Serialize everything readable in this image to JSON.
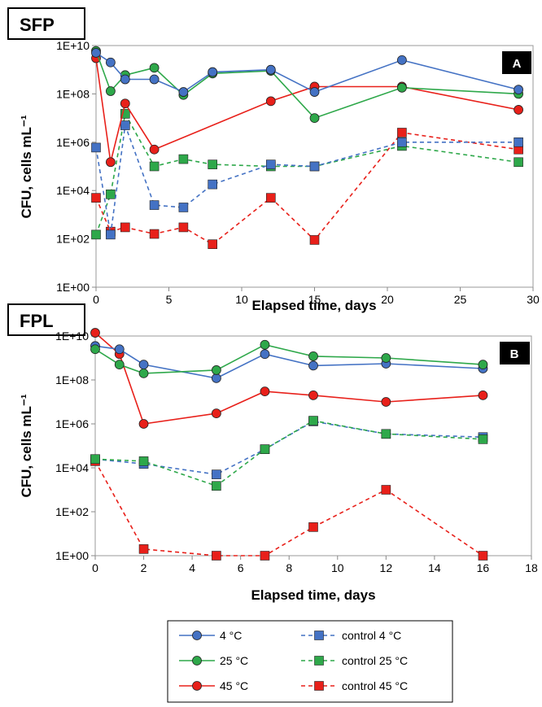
{
  "colors": {
    "blue": "#4472C4",
    "green": "#2EA84A",
    "red": "#E8201A"
  },
  "legend": {
    "items": [
      {
        "label": "4 °C",
        "color": "#4472C4",
        "marker": "circle",
        "dashed": false
      },
      {
        "label": "control 4 °C",
        "color": "#4472C4",
        "marker": "square",
        "dashed": true
      },
      {
        "label": "25 °C",
        "color": "#2EA84A",
        "marker": "circle",
        "dashed": false
      },
      {
        "label": "control 25 °C",
        "color": "#2EA84A",
        "marker": "square",
        "dashed": true
      },
      {
        "label": "45 °C",
        "color": "#E8201A",
        "marker": "circle",
        "dashed": false
      },
      {
        "label": "control 45 °C",
        "color": "#E8201A",
        "marker": "square",
        "dashed": true
      }
    ]
  },
  "chart_data": [
    {
      "type": "line",
      "tag": "SFP",
      "panel_label": "A",
      "xlabel": "Elapsed time, days",
      "ylabel": "CFU, cells mL⁻¹",
      "xlim": [
        0,
        30
      ],
      "xticks": [
        0,
        5,
        10,
        15,
        20,
        25,
        30
      ],
      "ylim": [
        1,
        10000000000
      ],
      "yscale": "log",
      "yticks": [
        {
          "v": 1,
          "label": "1E+00"
        },
        {
          "v": 100,
          "label": "1E+02"
        },
        {
          "v": 10000,
          "label": "1E+04"
        },
        {
          "v": 1000000,
          "label": "1E+06"
        },
        {
          "v": 100000000,
          "label": "1E+08"
        },
        {
          "v": 10000000000,
          "label": "1E+10"
        }
      ],
      "series": [
        {
          "legend": "control 45 °C",
          "color": "#E8201A",
          "marker": "square",
          "dashed": true,
          "x": [
            0,
            1,
            2,
            4,
            6,
            8,
            12,
            15,
            21,
            29
          ],
          "y": [
            5000,
            200,
            300,
            160,
            300,
            60,
            5000,
            90,
            2500000,
            500000
          ]
        },
        {
          "legend": "control 25 °C",
          "color": "#2EA84A",
          "marker": "square",
          "dashed": true,
          "x": [
            0,
            1,
            2,
            4,
            6,
            8,
            12,
            15,
            21,
            29
          ],
          "y": [
            150,
            7000,
            15000000,
            100000,
            200000,
            120000,
            100000,
            100000,
            700000,
            150000
          ]
        },
        {
          "legend": "control 4 °C",
          "color": "#4472C4",
          "marker": "square",
          "dashed": true,
          "x": [
            0,
            1,
            2,
            4,
            6,
            8,
            12,
            15,
            21,
            29
          ],
          "y": [
            600000,
            150,
            5000000,
            2500,
            2000,
            18000,
            120000,
            100000,
            1000000,
            1000000
          ]
        },
        {
          "legend": "45 °C",
          "color": "#E8201A",
          "marker": "circle",
          "dashed": false,
          "x": [
            0,
            1,
            2,
            4,
            12,
            15,
            21,
            29
          ],
          "y": [
            3000000000,
            150000,
            40000000,
            500000,
            50000000,
            200000000,
            200000000,
            22000000
          ]
        },
        {
          "legend": "25 °C",
          "color": "#2EA84A",
          "marker": "circle",
          "dashed": false,
          "x": [
            0,
            1,
            2,
            4,
            6,
            8,
            12,
            15,
            21,
            29
          ],
          "y": [
            6000000000,
            130000000,
            600000000,
            1200000000,
            90000000,
            700000000,
            900000000,
            10000000,
            180000000,
            100000000
          ]
        },
        {
          "legend": "4 °C",
          "color": "#4472C4",
          "marker": "circle",
          "dashed": false,
          "x": [
            0,
            1,
            2,
            4,
            6,
            8,
            12,
            15,
            21,
            29
          ],
          "y": [
            5000000000,
            2000000000,
            400000000,
            400000000,
            120000000,
            800000000,
            1000000000,
            120000000,
            2500000000,
            150000000
          ]
        }
      ]
    },
    {
      "type": "line",
      "tag": "FPL",
      "panel_label": "B",
      "xlabel": "Elapsed time, days",
      "ylabel": "CFU, cells mL⁻¹",
      "xlim": [
        0,
        18
      ],
      "xticks": [
        0,
        2,
        4,
        6,
        8,
        10,
        12,
        14,
        16,
        18
      ],
      "ylim": [
        1,
        10000000000
      ],
      "yscale": "log",
      "yticks": [
        {
          "v": 1,
          "label": "1E+00"
        },
        {
          "v": 100,
          "label": "1E+02"
        },
        {
          "v": 10000,
          "label": "1E+04"
        },
        {
          "v": 1000000,
          "label": "1E+06"
        },
        {
          "v": 100000000,
          "label": "1E+08"
        },
        {
          "v": 10000000000,
          "label": "1E+10"
        }
      ],
      "series": [
        {
          "legend": "control 45 °C",
          "color": "#E8201A",
          "marker": "square",
          "dashed": true,
          "x": [
            0,
            2,
            5,
            7,
            9,
            12,
            16
          ],
          "y": [
            20000,
            2,
            1,
            1,
            20,
            1000,
            1
          ]
        },
        {
          "legend": "control 4 °C",
          "color": "#4472C4",
          "marker": "square",
          "dashed": true,
          "x": [
            0,
            2,
            5,
            7,
            9,
            12,
            16
          ],
          "y": [
            25000,
            15000,
            5000,
            70000,
            1300000,
            350000,
            250000
          ]
        },
        {
          "legend": "control 25 °C",
          "color": "#2EA84A",
          "marker": "square",
          "dashed": true,
          "x": [
            0,
            2,
            5,
            7,
            9,
            12,
            16
          ],
          "y": [
            25000,
            20000,
            1500,
            70000,
            1400000,
            350000,
            200000
          ]
        },
        {
          "legend": "45 °C",
          "color": "#E8201A",
          "marker": "circle",
          "dashed": false,
          "x": [
            0,
            1,
            2,
            5,
            7,
            9,
            12,
            16
          ],
          "y": [
            14000000000,
            1500000000,
            1000000,
            3000000,
            30000000,
            20000000,
            10000000,
            20000000
          ]
        },
        {
          "legend": "4 °C",
          "color": "#4472C4",
          "marker": "circle",
          "dashed": false,
          "x": [
            0,
            1,
            2,
            5,
            7,
            9,
            12,
            16
          ],
          "y": [
            3500000000,
            2500000000,
            500000000,
            120000000,
            1500000000,
            450000000,
            550000000,
            330000000
          ]
        },
        {
          "legend": "25 °C",
          "color": "#2EA84A",
          "marker": "circle",
          "dashed": false,
          "x": [
            0,
            1,
            2,
            5,
            7,
            9,
            12,
            16
          ],
          "y": [
            2500000000,
            500000000,
            200000000,
            280000000,
            4000000000,
            1200000000,
            1000000000,
            500000000
          ]
        }
      ]
    }
  ]
}
